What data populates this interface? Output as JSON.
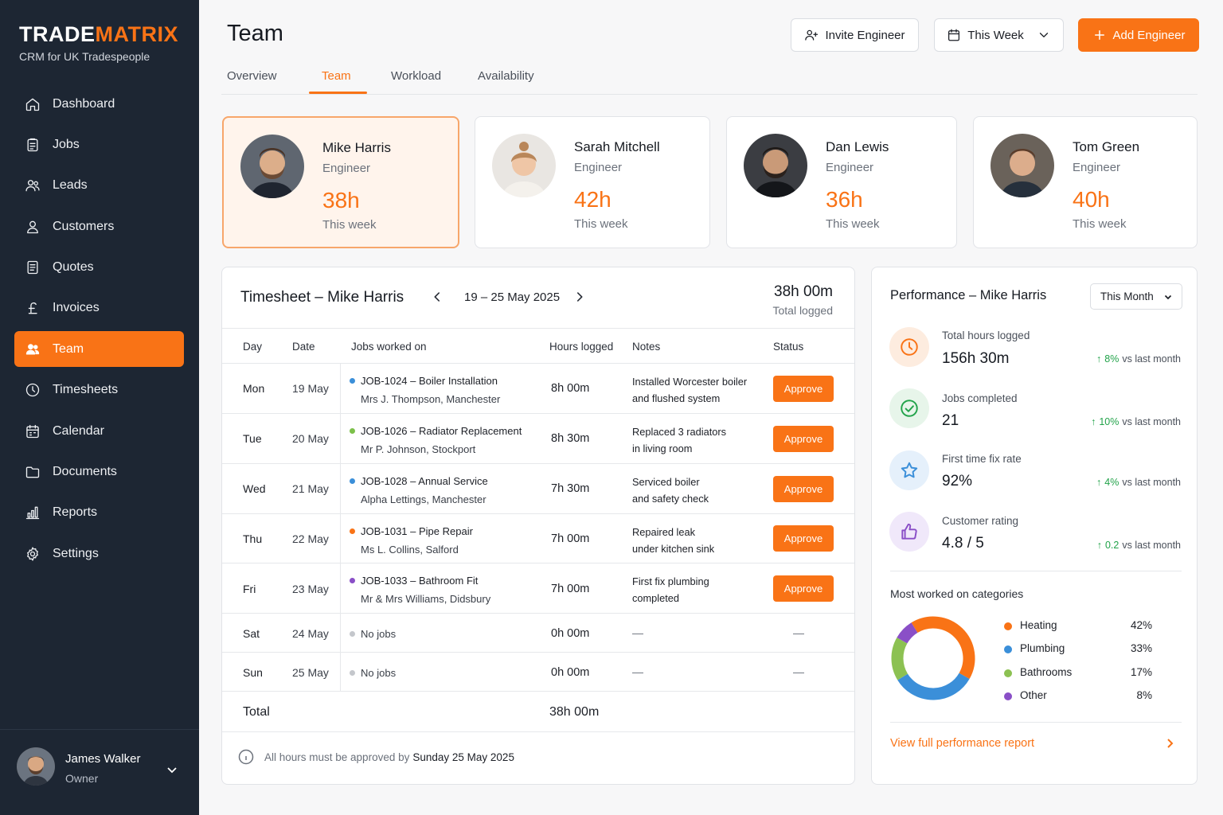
{
  "brand": {
    "part1": "TRADE",
    "part2": "MATRIX",
    "tagline": "CRM for UK Tradespeople"
  },
  "sidebar": {
    "items": [
      {
        "label": "Dashboard",
        "icon": "home-icon"
      },
      {
        "label": "Jobs",
        "icon": "clipboard-icon"
      },
      {
        "label": "Leads",
        "icon": "users-icon"
      },
      {
        "label": "Customers",
        "icon": "user-icon"
      },
      {
        "label": "Quotes",
        "icon": "document-icon"
      },
      {
        "label": "Invoices",
        "icon": "pound-icon"
      },
      {
        "label": "Team",
        "icon": "team-icon",
        "active": true
      },
      {
        "label": "Timesheets",
        "icon": "clock-icon"
      },
      {
        "label": "Calendar",
        "icon": "calendar-icon"
      },
      {
        "label": "Documents",
        "icon": "folder-icon"
      },
      {
        "label": "Reports",
        "icon": "bar-chart-icon"
      },
      {
        "label": "Settings",
        "icon": "gear-icon"
      }
    ],
    "user": {
      "name": "James Walker",
      "role": "Owner"
    }
  },
  "header": {
    "title": "Team",
    "invite_label": "Invite Engineer",
    "period_label": "This Week",
    "add_label": "Add Engineer"
  },
  "tabs": [
    "Overview",
    "Team",
    "Workload",
    "Availability"
  ],
  "active_tab": "Team",
  "engineers": [
    {
      "name": "Mike Harris",
      "role": "Engineer",
      "hours": "38h",
      "period": "This week",
      "selected": true
    },
    {
      "name": "Sarah Mitchell",
      "role": "Engineer",
      "hours": "42h",
      "period": "This week"
    },
    {
      "name": "Dan Lewis",
      "role": "Engineer",
      "hours": "36h",
      "period": "This week"
    },
    {
      "name": "Tom Green",
      "role": "Engineer",
      "hours": "40h",
      "period": "This week"
    }
  ],
  "timesheet": {
    "title": "Timesheet – Mike Harris",
    "range": "19 – 25 May 2025",
    "total": "38h 00m",
    "total_label": "Total logged",
    "columns": [
      "Day",
      "Date",
      "Jobs worked on",
      "Hours logged",
      "Notes",
      "Status"
    ],
    "rows": [
      {
        "day": "Mon",
        "date": "19 May",
        "job": "JOB-1024 – Boiler Installation",
        "customer": "Mrs J. Thompson, Manchester",
        "dot": "#3b8fd9",
        "hours": "8h  00m",
        "note1": "Installed Worcester boiler",
        "note2": "and flushed system",
        "status": "Approve"
      },
      {
        "day": "Tue",
        "date": "20 May",
        "job": "JOB-1026 – Radiator Replacement",
        "customer": "Mr P. Johnson, Stockport",
        "dot": "#7cc04a",
        "hours": "8h  30m",
        "note1": "Replaced 3 radiators",
        "note2": "in living room",
        "status": "Approve"
      },
      {
        "day": "Wed",
        "date": "21 May",
        "job": "JOB-1028 – Annual Service",
        "customer": "Alpha Lettings, Manchester",
        "dot": "#3b8fd9",
        "hours": "7h  30m",
        "note1": "Serviced boiler",
        "note2": "and safety check",
        "status": "Approve"
      },
      {
        "day": "Thu",
        "date": "22 May",
        "job": "JOB-1031 – Pipe Repair",
        "customer": "Ms L. Collins, Salford",
        "dot": "#f97316",
        "hours": "7h  00m",
        "note1": "Repaired leak",
        "note2": "under kitchen sink",
        "status": "Approve"
      },
      {
        "day": "Fri",
        "date": "23 May",
        "job": "JOB-1033 – Bathroom Fit",
        "customer": "Mr & Mrs Williams, Didsbury",
        "dot": "#8a4fc7",
        "hours": "7h  00m",
        "note1": "First fix plumbing",
        "note2": "completed",
        "status": "Approve"
      }
    ],
    "empty_rows": [
      {
        "day": "Sat",
        "date": "24 May",
        "job": "No jobs",
        "hours": "0h  00m",
        "note": "—",
        "status": "—"
      },
      {
        "day": "Sun",
        "date": "25 May",
        "job": "No jobs",
        "hours": "0h  00m",
        "note": "—",
        "status": "—"
      }
    ],
    "total_row_label": "Total",
    "total_row_value": "38h 00m",
    "footnote": "All hours must be approved by",
    "footnote_date": "Sunday 25 May 2025"
  },
  "performance": {
    "title": "Performance – Mike Harris",
    "period": "This Month",
    "metrics": [
      {
        "label": "Total hours logged",
        "value": "156h 30m",
        "change": "8%",
        "vs": "vs last month",
        "icon": "clock-icon"
      },
      {
        "label": "Jobs completed",
        "value": "21",
        "change": "10%",
        "vs": "vs last month",
        "icon": "check-circle-icon"
      },
      {
        "label": "First time fix rate",
        "value": "92%",
        "change": "4%",
        "vs": "vs last month",
        "icon": "star-icon"
      },
      {
        "label": "Customer rating",
        "value": "4.8 / 5",
        "change": "0.2",
        "vs": "vs last month",
        "icon": "thumbs-up-icon"
      }
    ],
    "categories_title": "Most worked on categories",
    "link": "View full performance report"
  },
  "chart_data": {
    "type": "pie",
    "title": "Most worked on categories",
    "categories": [
      "Heating",
      "Plumbing",
      "Bathrooms",
      "Other"
    ],
    "values": [
      42,
      33,
      17,
      8
    ],
    "value_labels": [
      "42%",
      "33%",
      "17%",
      "8%"
    ],
    "colors": [
      "#f97316",
      "#3b8fd9",
      "#8cc152",
      "#8a4fc7"
    ],
    "donut": true
  }
}
